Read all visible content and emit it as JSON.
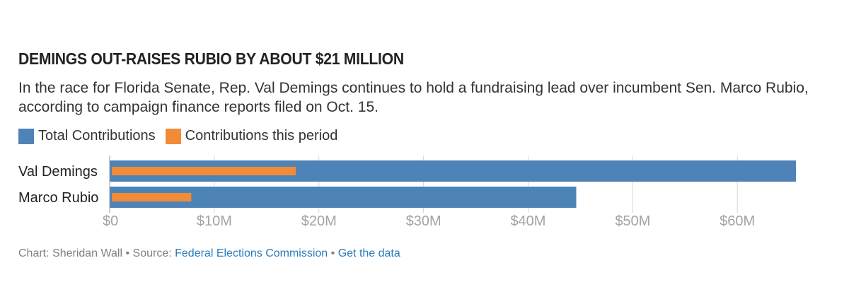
{
  "header": {
    "title": "DEMINGS OUT-RAISES RUBIO BY ABOUT $21 MILLION",
    "subtitle": "In the race for Florida Senate, Rep. Val Demings continues to hold a fundraising lead over incumbent Sen. Marco Rubio, according to campaign finance reports filed on Oct. 15."
  },
  "colors": {
    "total": "#4e83b7",
    "period": "#f28b37",
    "grid": "#d6d6d6",
    "tick": "#a3a3a3"
  },
  "chart_data": {
    "type": "bar",
    "orientation": "horizontal",
    "categories": [
      "Val Demings",
      "Marco Rubio"
    ],
    "series": [
      {
        "name": "Total Contributions",
        "values": [
          65.6,
          44.6
        ]
      },
      {
        "name": "Contributions this period",
        "values": [
          17.8,
          7.8
        ]
      }
    ],
    "unit": "millions of dollars",
    "xlim": [
      0,
      65.6
    ],
    "xticks": [
      0,
      10,
      20,
      30,
      40,
      50,
      60
    ],
    "xtick_labels": [
      "$0",
      "$10M",
      "$20M",
      "$30M",
      "$40M",
      "$50M",
      "$60M"
    ],
    "grid": true,
    "legend_position": "top-left"
  },
  "footer": {
    "credit": "Chart: Sheridan Wall",
    "separator": " • ",
    "source_label": "Source: ",
    "source_link": "Federal Elections Commission",
    "data_link": "Get the data"
  }
}
